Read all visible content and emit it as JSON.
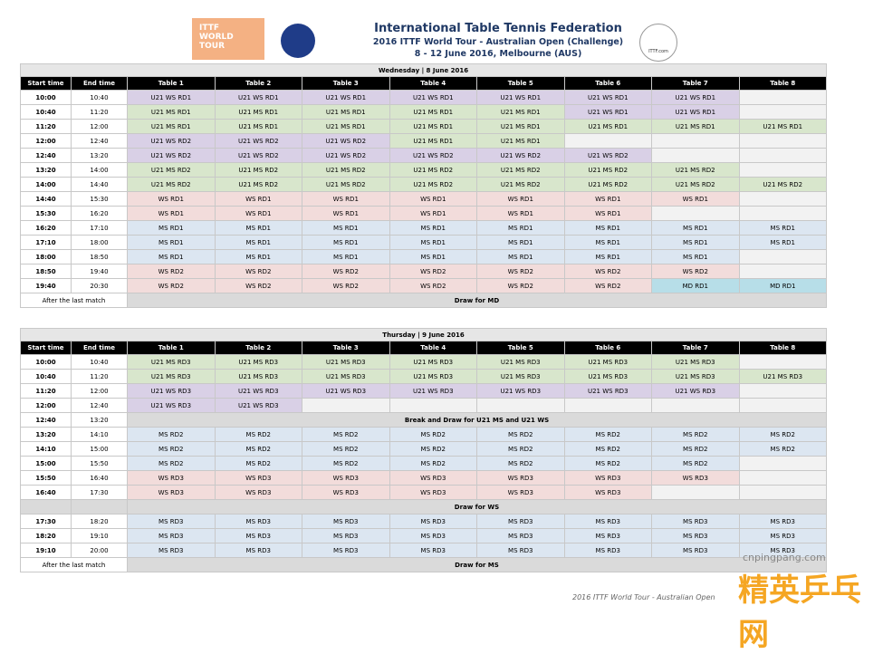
{
  "header": {
    "logo_line1": "ITTF",
    "logo_line2": "WORLD",
    "logo_line3": "TOUR",
    "title": "International Table Tennis Federation",
    "subtitle": "2016 ITTF World Tour - Australian Open (Challenge)",
    "dates": "8 - 12 June 2016, Melbourne (AUS)",
    "right_logo": "ITTF.com"
  },
  "columns": [
    "Start time",
    "End time",
    "Table 1",
    "Table 2",
    "Table 3",
    "Table 4",
    "Table 5",
    "Table 6",
    "Table 7",
    "Table 8"
  ],
  "days": [
    {
      "title": "Wednesday | 8 June 2016",
      "rows": [
        {
          "start": "10:00",
          "end": "10:40",
          "cells": [
            "U21 WS RD1",
            "U21 WS RD1",
            "U21 WS RD1",
            "U21 WS RD1",
            "U21 WS RD1",
            "U21 WS RD1",
            "U21 WS RD1",
            null
          ]
        },
        {
          "start": "10:40",
          "end": "11:20",
          "cells": [
            "U21 MS RD1",
            "U21 MS RD1",
            "U21 MS RD1",
            "U21 MS RD1",
            "U21 MS RD1",
            "U21 WS RD1",
            "U21 WS RD1",
            null
          ]
        },
        {
          "start": "11:20",
          "end": "12:00",
          "cells": [
            "U21 MS RD1",
            "U21 MS RD1",
            "U21 MS RD1",
            "U21 MS RD1",
            "U21 MS RD1",
            "U21 MS RD1",
            "U21 MS RD1",
            "U21 MS RD1"
          ]
        },
        {
          "start": "12:00",
          "end": "12:40",
          "cells": [
            "U21 WS RD2",
            "U21 WS RD2",
            "U21 WS RD2",
            "U21 MS RD1",
            "U21 MS RD1",
            null,
            null,
            null
          ]
        },
        {
          "start": "12:40",
          "end": "13:20",
          "cells": [
            "U21 WS RD2",
            "U21 WS RD2",
            "U21 WS RD2",
            "U21 WS RD2",
            "U21 WS RD2",
            "U21 WS RD2",
            null,
            null
          ]
        },
        {
          "start": "13:20",
          "end": "14:00",
          "cells": [
            "U21 MS RD2",
            "U21 MS RD2",
            "U21 MS RD2",
            "U21 MS RD2",
            "U21 MS RD2",
            "U21 MS RD2",
            "U21 MS RD2",
            null
          ]
        },
        {
          "start": "14:00",
          "end": "14:40",
          "cells": [
            "U21 MS RD2",
            "U21 MS RD2",
            "U21 MS RD2",
            "U21 MS RD2",
            "U21 MS RD2",
            "U21 MS RD2",
            "U21 MS RD2",
            "U21 MS RD2"
          ]
        },
        {
          "start": "14:40",
          "end": "15:30",
          "cells": [
            "WS RD1",
            "WS RD1",
            "WS RD1",
            "WS RD1",
            "WS RD1",
            "WS RD1",
            "WS RD1",
            null
          ]
        },
        {
          "start": "15:30",
          "end": "16:20",
          "cells": [
            "WS RD1",
            "WS RD1",
            "WS RD1",
            "WS RD1",
            "WS RD1",
            "WS RD1",
            null,
            null
          ]
        },
        {
          "start": "16:20",
          "end": "17:10",
          "cells": [
            "MS RD1",
            "MS RD1",
            "MS RD1",
            "MS RD1",
            "MS RD1",
            "MS RD1",
            "MS RD1",
            "MS RD1"
          ]
        },
        {
          "start": "17:10",
          "end": "18:00",
          "cells": [
            "MS RD1",
            "MS RD1",
            "MS RD1",
            "MS RD1",
            "MS RD1",
            "MS RD1",
            "MS RD1",
            "MS RD1"
          ]
        },
        {
          "start": "18:00",
          "end": "18:50",
          "cells": [
            "MS RD1",
            "MS RD1",
            "MS RD1",
            "MS RD1",
            "MS RD1",
            "MS RD1",
            "MS RD1",
            null
          ]
        },
        {
          "start": "18:50",
          "end": "19:40",
          "cells": [
            "WS RD2",
            "WS RD2",
            "WS RD2",
            "WS RD2",
            "WS RD2",
            "WS RD2",
            "WS RD2",
            null
          ]
        },
        {
          "start": "19:40",
          "end": "20:30",
          "cells": [
            "WS RD2",
            "WS RD2",
            "WS RD2",
            "WS RD2",
            "WS RD2",
            "WS RD2",
            "MD RD1",
            "MD RD1"
          ]
        },
        {
          "start": "After the last match",
          "span": "Draw for MD"
        }
      ]
    },
    {
      "title": "Thursday | 9 June 2016",
      "rows": [
        {
          "start": "10:00",
          "end": "10:40",
          "cells": [
            "U21 MS RD3",
            "U21 MS RD3",
            "U21 MS RD3",
            "U21 MS RD3",
            "U21 MS RD3",
            "U21 MS RD3",
            "U21 MS RD3",
            null
          ]
        },
        {
          "start": "10:40",
          "end": "11:20",
          "cells": [
            "U21 MS RD3",
            "U21 MS RD3",
            "U21 MS RD3",
            "U21 MS RD3",
            "U21 MS RD3",
            "U21 MS RD3",
            "U21 MS RD3",
            "U21 MS RD3"
          ]
        },
        {
          "start": "11:20",
          "end": "12:00",
          "cells": [
            "U21 WS RD3",
            "U21 WS RD3",
            "U21 WS RD3",
            "U21 WS RD3",
            "U21 WS RD3",
            "U21 WS RD3",
            "U21 WS RD3",
            null
          ]
        },
        {
          "start": "12:00",
          "end": "12:40",
          "cells": [
            "U21 WS RD3",
            "U21 WS RD3",
            null,
            null,
            null,
            null,
            null,
            null
          ]
        },
        {
          "start": "12:40",
          "end": "13:20",
          "span": "Break and Draw for U21 MS and U21 WS"
        },
        {
          "start": "13:20",
          "end": "14:10",
          "cells": [
            "MS RD2",
            "MS RD2",
            "MS RD2",
            "MS RD2",
            "MS RD2",
            "MS RD2",
            "MS RD2",
            "MS RD2"
          ]
        },
        {
          "start": "14:10",
          "end": "15:00",
          "cells": [
            "MS RD2",
            "MS RD2",
            "MS RD2",
            "MS RD2",
            "MS RD2",
            "MS RD2",
            "MS RD2",
            "MS RD2"
          ]
        },
        {
          "start": "15:00",
          "end": "15:50",
          "cells": [
            "MS RD2",
            "MS RD2",
            "MS RD2",
            "MS RD2",
            "MS RD2",
            "MS RD2",
            "MS RD2",
            null
          ]
        },
        {
          "start": "15:50",
          "end": "16:40",
          "cells": [
            "WS RD3",
            "WS RD3",
            "WS RD3",
            "WS RD3",
            "WS RD3",
            "WS RD3",
            "WS RD3",
            null
          ]
        },
        {
          "start": "16:40",
          "end": "17:30",
          "cells": [
            "WS RD3",
            "WS RD3",
            "WS RD3",
            "WS RD3",
            "WS RD3",
            "WS RD3",
            null,
            null
          ]
        },
        {
          "span": "Draw for WS"
        },
        {
          "start": "17:30",
          "end": "18:20",
          "cells": [
            "MS RD3",
            "MS RD3",
            "MS RD3",
            "MS RD3",
            "MS RD3",
            "MS RD3",
            "MS RD3",
            "MS RD3"
          ]
        },
        {
          "start": "18:20",
          "end": "19:10",
          "cells": [
            "MS RD3",
            "MS RD3",
            "MS RD3",
            "MS RD3",
            "MS RD3",
            "MS RD3",
            "MS RD3",
            "MS RD3"
          ]
        },
        {
          "start": "19:10",
          "end": "20:00",
          "cells": [
            "MS RD3",
            "MS RD3",
            "MS RD3",
            "MS RD3",
            "MS RD3",
            "MS RD3",
            "MS RD3",
            "MS RD3"
          ]
        },
        {
          "start": "After the last match",
          "span": "Draw for MS"
        }
      ]
    }
  ],
  "footer": "2016 ITTF World Tour - Australian Open",
  "watermark": "cnpingpang.com",
  "watermark_cn": "精英乒乓网"
}
